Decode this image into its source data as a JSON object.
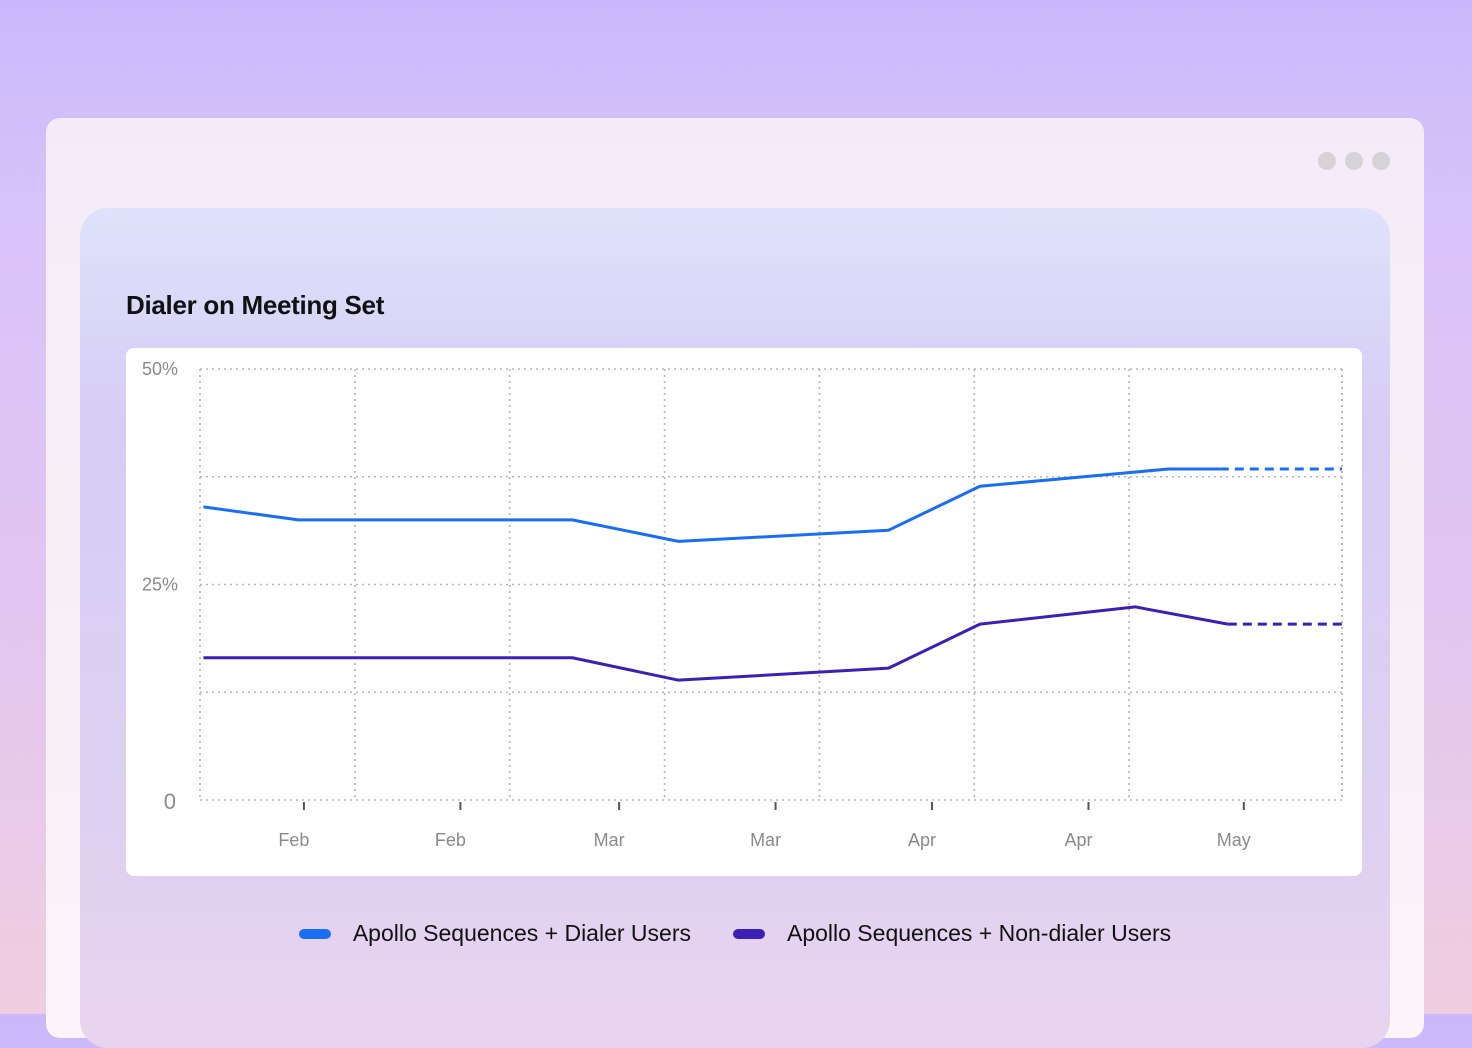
{
  "chart_data": {
    "type": "line",
    "title": "Dialer on Meeting Set",
    "xlabel": "",
    "ylabel": "",
    "xlim": [
      0,
      100
    ],
    "ylim": [
      0,
      50
    ],
    "y_ticks": [
      {
        "value": 50,
        "label": "50%"
      },
      {
        "value": 25,
        "label": "25%"
      },
      {
        "value": 0,
        "label": "0"
      }
    ],
    "x_ticks": [
      {
        "value": 9.1,
        "label": "Feb"
      },
      {
        "value": 22.8,
        "label": "Feb"
      },
      {
        "value": 36.7,
        "label": "Mar"
      },
      {
        "value": 50.4,
        "label": "Mar"
      },
      {
        "value": 64.1,
        "label": "Apr"
      },
      {
        "value": 77.8,
        "label": "Apr"
      },
      {
        "value": 91.4,
        "label": "May"
      }
    ],
    "grid": true,
    "legend_position": "bottom",
    "series": [
      {
        "name": "Apollo Sequences + Dialer Users",
        "color": "#1a6ef5",
        "x": [
          0.3,
          8.6,
          32.6,
          41.9,
          60.3,
          68.3,
          84.8,
          89.3
        ],
        "values": [
          34,
          32.5,
          32.5,
          30,
          31.3,
          36.4,
          38.4,
          38.4
        ],
        "projected": {
          "x": [
            89.3,
            100
          ],
          "values": [
            38.4,
            38.4
          ]
        }
      },
      {
        "name": "Apollo Sequences + Non-dialer Users",
        "color": "#3e1fb5",
        "x": [
          0.3,
          32.6,
          41.9,
          60.3,
          68.3,
          81.9,
          90.0
        ],
        "values": [
          16.5,
          16.5,
          13.9,
          15.3,
          20.4,
          22.4,
          20.4
        ],
        "projected": {
          "x": [
            90.0,
            100
          ],
          "values": [
            20.4,
            20.4
          ]
        }
      }
    ]
  }
}
